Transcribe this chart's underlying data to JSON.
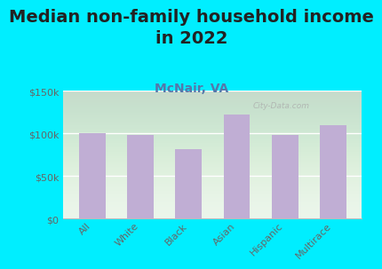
{
  "title": "Median non-family household income\nin 2022",
  "subtitle": "McNair, VA",
  "categories": [
    "All",
    "White",
    "Black",
    "Asian",
    "Hispanic",
    "Multirace"
  ],
  "values": [
    100000,
    98000,
    82000,
    122000,
    98000,
    110000
  ],
  "bar_color": "#c0aed4",
  "background_outer": "#00eeff",
  "ylim": [
    0,
    150000
  ],
  "yticks": [
    0,
    50000,
    100000,
    150000
  ],
  "ytick_labels": [
    "$0",
    "$50k",
    "$100k",
    "$150k"
  ],
  "title_fontsize": 14,
  "subtitle_fontsize": 10,
  "watermark": "City-Data.com",
  "bar_width": 0.55
}
